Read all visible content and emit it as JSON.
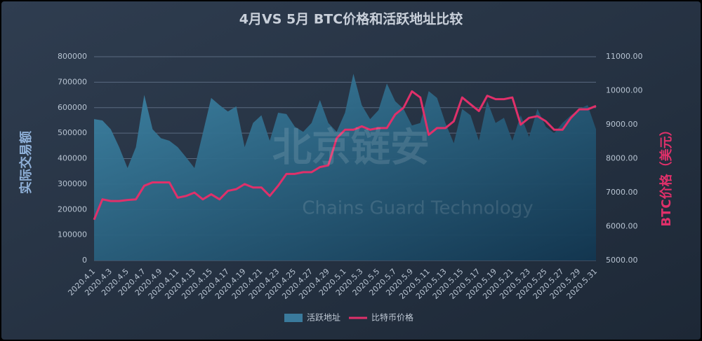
{
  "chart_data": {
    "type": "combo",
    "title": "4月VS 5月 BTC价格和活跃地址比较",
    "y_label": "实际交易额",
    "y2_label": "BTC价格（美元）",
    "watermark": "北京链安",
    "watermark_subtitle": "Chains Guard Technology",
    "legend": "bottom",
    "categories": [
      "2020.4.1",
      null,
      "2020.4.3",
      null,
      "2020.4.5",
      null,
      "2020.4.7",
      null,
      "2020.4.9",
      null,
      "2020.4.11",
      null,
      "2020.4.13",
      null,
      "2020.4.15",
      null,
      "2020.4.17",
      null,
      "2020.4.19",
      null,
      "2020.4.21",
      null,
      "2020.4.23",
      null,
      "2020.4.25",
      null,
      "2020.4.27",
      null,
      "2020.4.29",
      null,
      "2020.5.1",
      null,
      "2020.5.3",
      null,
      "2020.5.5",
      null,
      "2020.5.7",
      null,
      "2020.5.9",
      null,
      "2020.5.11",
      null,
      "2020.5.13",
      null,
      "2020.5.15",
      null,
      "2020.5.17",
      null,
      "2020.5.19",
      null,
      "2020.5.21",
      null,
      "2020.5.23",
      null,
      "2020.5.25",
      null,
      "2020.5.27",
      null,
      "2020.5.29",
      null,
      "2020.5.31"
    ],
    "series": [
      {
        "name": "活跃地址",
        "type": "area",
        "color": "#3a7a9c",
        "values": [
          555000,
          550000,
          515000,
          445000,
          363000,
          445000,
          650000,
          515000,
          480000,
          470000,
          445000,
          405000,
          363000,
          500000,
          638000,
          610000,
          585000,
          605000,
          445000,
          540000,
          570000,
          470000,
          580000,
          575000,
          525000,
          505000,
          540000,
          630000,
          540000,
          505000,
          580000,
          733000,
          610000,
          555000,
          590000,
          695000,
          625000,
          595000,
          530000,
          540000,
          665000,
          638000,
          540000,
          460000,
          595000,
          570000,
          470000,
          625000,
          540000,
          560000,
          470000,
          570000,
          485000,
          595000,
          525000,
          500000,
          540000,
          570000,
          595000,
          610000,
          515000
        ]
      },
      {
        "name": "比特币价格",
        "type": "line",
        "axis": "y2",
        "color": "#e0306a",
        "values": [
          6200,
          6800,
          6750,
          6750,
          6780,
          6800,
          7200,
          7300,
          7300,
          7300,
          6850,
          6900,
          7000,
          6800,
          6950,
          6800,
          7050,
          7100,
          7250,
          7150,
          7150,
          6900,
          7200,
          7550,
          7550,
          7600,
          7600,
          7750,
          7800,
          8600,
          8850,
          8850,
          8950,
          8850,
          8900,
          8900,
          9300,
          9500,
          9980,
          9800,
          8700,
          8900,
          8900,
          9100,
          9800,
          9600,
          9400,
          9850,
          9750,
          9750,
          9800,
          9000,
          9200,
          9250,
          9100,
          8850,
          8850,
          9200,
          9450,
          9450,
          9550
        ]
      }
    ],
    "ylim": [
      0,
      800000
    ],
    "yticks": [
      0,
      100000,
      200000,
      300000,
      400000,
      500000,
      600000,
      700000,
      800000
    ],
    "y2lim": [
      5000,
      11000
    ],
    "y2ticks": [
      {
        "value": 5000,
        "label": "5000.00"
      },
      {
        "value": 6000,
        "label": "6000.00"
      },
      {
        "value": 7000,
        "label": "7000.00"
      },
      {
        "value": 8000,
        "label": "8000.00"
      },
      {
        "value": 9000,
        "label": "9000.00"
      },
      {
        "value": 10000,
        "label": "10000.00"
      },
      {
        "value": 11000,
        "label": "11000.00"
      }
    ],
    "grid": true
  }
}
